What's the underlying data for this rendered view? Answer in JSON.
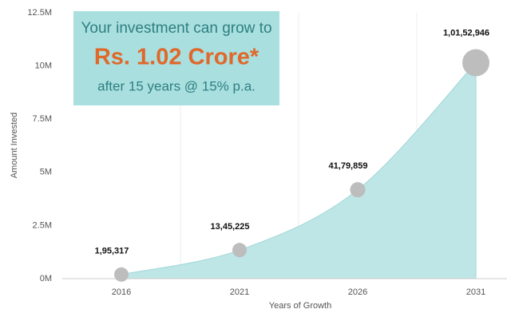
{
  "chart_data": {
    "type": "area",
    "annotation": {
      "line1": "Your investment can grow to",
      "line2": "Rs. 1.02 Crore*",
      "line3": "after 15 years @ 15% p.a."
    },
    "x_label": "Years of Growth",
    "y_label": "Amount Invested",
    "categories": [
      "2016",
      "2021",
      "2026",
      "2031"
    ],
    "values": [
      195317,
      1345225,
      4179859,
      10152946
    ],
    "value_labels": [
      "1,95,317",
      "13,45,225",
      "41,79,859",
      "1,01,52,946"
    ],
    "color": "#bfe6e6",
    "marker_color": "#bdbdbd",
    "ylim": [
      0,
      12500000
    ],
    "yticks": [
      {
        "value": 0,
        "label": "0M"
      },
      {
        "value": 2500000,
        "label": "2.5M"
      },
      {
        "value": 5000000,
        "label": "5M"
      },
      {
        "value": 7500000,
        "label": "7.5M"
      },
      {
        "value": 10000000,
        "label": "10M"
      },
      {
        "value": 12500000,
        "label": "12.5M"
      }
    ]
  }
}
